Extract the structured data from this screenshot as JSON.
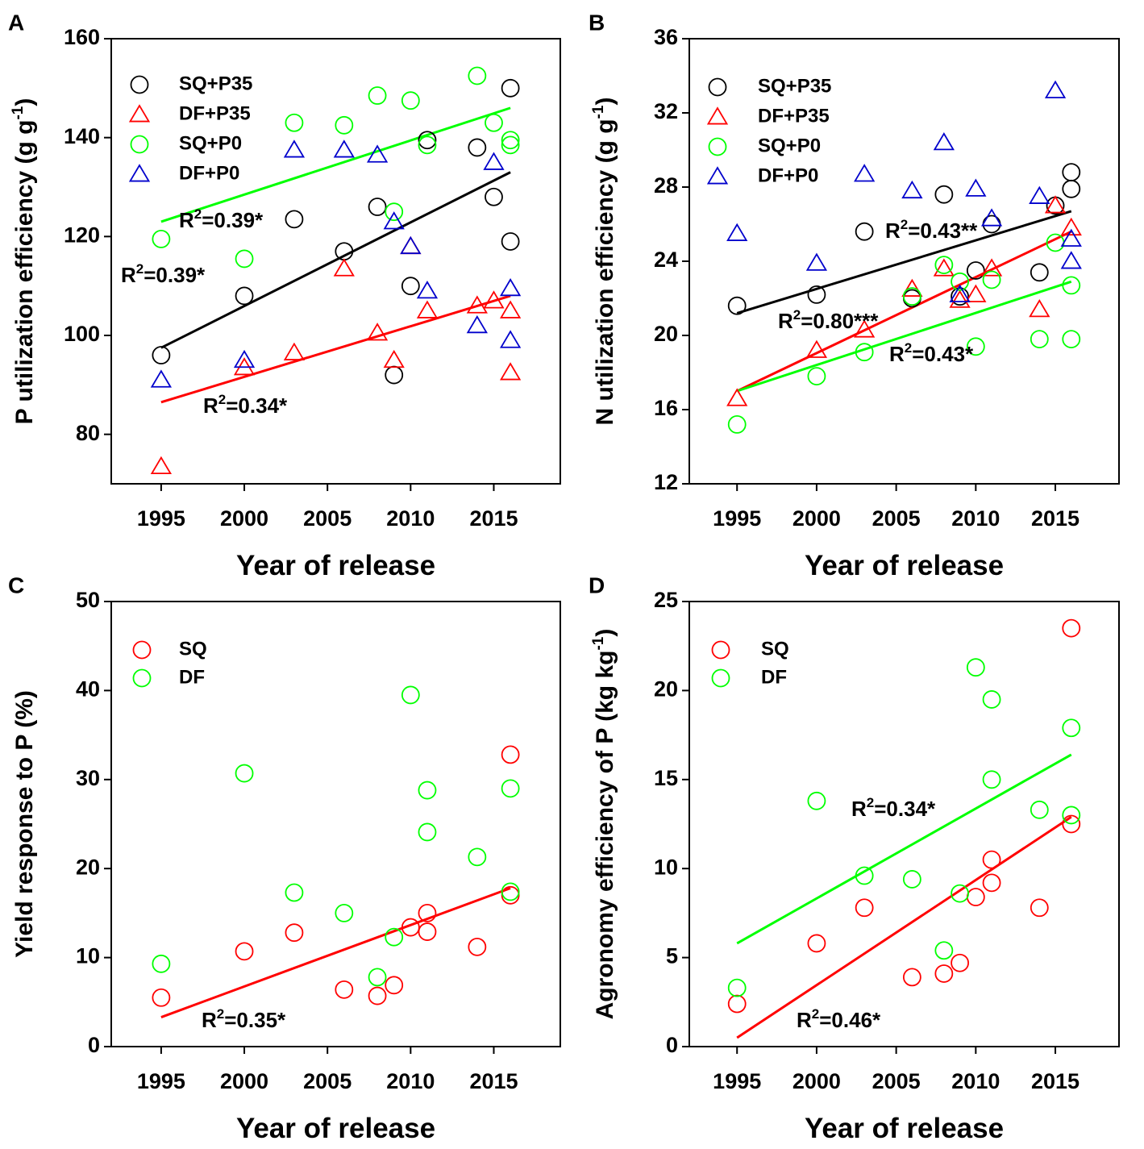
{
  "figure_title": "",
  "chart_data": [
    {
      "panel": "A",
      "type": "scatter",
      "xlabel": "Year of release",
      "ylabel": "P utilization efficiency (g g",
      "ylabel_sup": "-1",
      "ylabel_close": ")",
      "xlim": [
        1992,
        2019
      ],
      "ylim": [
        70,
        160
      ],
      "xticks": [
        1995,
        2000,
        2005,
        2010,
        2015
      ],
      "yticks": [
        80,
        100,
        120,
        140,
        160
      ],
      "legend": [
        "SQ+P35",
        "DF+P35",
        "SQ+P0",
        "DF+P0"
      ],
      "series": [
        {
          "name": "SQ+P35",
          "color": "#000000",
          "marker": "circle",
          "x": [
            1995,
            2000,
            2003,
            2006,
            2008,
            2009,
            2010,
            2011,
            2014,
            2015,
            2016,
            2016
          ],
          "y": [
            96,
            108,
            123.5,
            117,
            126,
            92,
            110,
            139.5,
            138,
            128,
            150,
            119
          ],
          "fit": {
            "x": [
              1995,
              2016
            ],
            "y": [
              97.5,
              133
            ],
            "r2": "=0.39*"
          }
        },
        {
          "name": "DF+P35",
          "color": "#ff0000",
          "marker": "triangle",
          "x": [
            1995,
            2000,
            2003,
            2006,
            2008,
            2009,
            2010,
            2011,
            2014,
            2015,
            2016,
            2016
          ],
          "y": [
            73.5,
            93.5,
            96.5,
            113.5,
            100.5,
            95,
            118,
            105,
            106,
            107,
            105,
            92.5
          ],
          "fit": {
            "x": [
              1995,
              2016
            ],
            "y": [
              86.5,
              108
            ],
            "r2": "=0.34*"
          }
        },
        {
          "name": "SQ+P0",
          "color": "#00ff00",
          "marker": "circle",
          "x": [
            1995,
            2000,
            2003,
            2006,
            2008,
            2009,
            2010,
            2011,
            2014,
            2015,
            2016,
            2016
          ],
          "y": [
            119.5,
            115.5,
            143,
            142.5,
            148.5,
            125,
            147.5,
            138.5,
            152.5,
            143,
            139.5,
            138.5
          ],
          "fit": {
            "x": [
              1995,
              2016
            ],
            "y": [
              123,
              146
            ],
            "r2": "=0.39*"
          }
        },
        {
          "name": "DF+P0",
          "color": "#0000cc",
          "marker": "triangle",
          "x": [
            1995,
            2000,
            2003,
            2006,
            2008,
            2009,
            2010,
            2011,
            2014,
            2015,
            2016,
            2016
          ],
          "y": [
            91,
            95,
            137.5,
            137.5,
            136.5,
            123,
            118,
            109,
            102,
            135,
            109.5,
            99
          ],
          "fit": null
        }
      ]
    },
    {
      "panel": "B",
      "type": "scatter",
      "xlabel": "Year of release",
      "ylabel": "N utilization efficiency (g g",
      "ylabel_sup": "-1",
      "ylabel_close": ")",
      "xlim": [
        1992,
        2019
      ],
      "ylim": [
        12,
        36
      ],
      "xticks": [
        1995,
        2000,
        2005,
        2010,
        2015
      ],
      "yticks": [
        12,
        16,
        20,
        24,
        28,
        32,
        36
      ],
      "legend": [
        "SQ+P35",
        "DF+P35",
        "SQ+P0",
        "DF+P0"
      ],
      "series": [
        {
          "name": "SQ+P35",
          "color": "#000000",
          "marker": "circle",
          "x": [
            1995,
            2000,
            2003,
            2006,
            2008,
            2009,
            2010,
            2011,
            2014,
            2015,
            2016,
            2016
          ],
          "y": [
            21.6,
            22.2,
            25.6,
            22,
            27.6,
            22.1,
            23.5,
            26,
            23.4,
            27,
            28.8,
            27.9
          ],
          "fit": {
            "x": [
              1995,
              2016
            ],
            "y": [
              21.2,
              26.7
            ],
            "r2": "=0.43**"
          }
        },
        {
          "name": "DF+P35",
          "color": "#ff0000",
          "marker": "triangle",
          "x": [
            1995,
            2000,
            2003,
            2006,
            2008,
            2009,
            2010,
            2011,
            2014,
            2015,
            2016
          ],
          "y": [
            16.6,
            19.2,
            20.3,
            22.5,
            23.6,
            21.9,
            22.2,
            23.6,
            21.4,
            27,
            25.8
          ],
          "fit": {
            "x": [
              1995,
              2016
            ],
            "y": [
              17,
              25.6
            ],
            "r2": "=0.80***"
          }
        },
        {
          "name": "SQ+P0",
          "color": "#00ff00",
          "marker": "circle",
          "x": [
            1995,
            2000,
            2003,
            2006,
            2008,
            2009,
            2010,
            2011,
            2014,
            2015,
            2016,
            2016
          ],
          "y": [
            15.2,
            17.8,
            19.1,
            22.1,
            23.8,
            22.9,
            19.4,
            23,
            19.8,
            25,
            22.7,
            19.8
          ],
          "fit": {
            "x": [
              1995,
              2016
            ],
            "y": [
              17,
              22.9
            ],
            "r2": "=0.43*"
          }
        },
        {
          "name": "DF+P0",
          "color": "#0000cc",
          "marker": "triangle",
          "x": [
            1995,
            2000,
            2003,
            2006,
            2008,
            2009,
            2010,
            2011,
            2014,
            2015,
            2016,
            2016
          ],
          "y": [
            25.5,
            23.9,
            28.7,
            27.8,
            30.4,
            22.2,
            27.9,
            26.3,
            27.5,
            33.2,
            25.2,
            24
          ],
          "fit": null
        }
      ]
    },
    {
      "panel": "C",
      "type": "scatter",
      "xlabel": "Year of release",
      "ylabel": "Yield response to P (%)",
      "ylabel_sup": "",
      "ylabel_close": "",
      "xlim": [
        1992,
        2019
      ],
      "ylim": [
        0,
        50
      ],
      "xticks": [
        1995,
        2000,
        2005,
        2010,
        2015
      ],
      "yticks": [
        0,
        10,
        20,
        30,
        40,
        50
      ],
      "legend": [
        "SQ",
        "DF"
      ],
      "series": [
        {
          "name": "SQ",
          "color": "#ff0000",
          "marker": "circle",
          "x": [
            1995,
            2000,
            2003,
            2006,
            2008,
            2009,
            2010,
            2011,
            2011,
            2014,
            2016,
            2016
          ],
          "y": [
            5.5,
            10.7,
            12.8,
            6.4,
            5.7,
            6.9,
            13.4,
            15,
            12.9,
            11.2,
            32.8,
            17
          ],
          "fit": {
            "x": [
              1995,
              2016
            ],
            "y": [
              3.3,
              17.8
            ],
            "r2": "=0.35*"
          }
        },
        {
          "name": "DF",
          "color": "#00ff00",
          "marker": "circle",
          "x": [
            1995,
            2000,
            2003,
            2006,
            2008,
            2009,
            2010,
            2011,
            2011,
            2014,
            2016,
            2016
          ],
          "y": [
            9.3,
            30.7,
            17.3,
            15,
            7.8,
            12.3,
            39.5,
            28.8,
            24.1,
            21.3,
            29,
            17.4
          ],
          "fit": null
        }
      ]
    },
    {
      "panel": "D",
      "type": "scatter",
      "xlabel": "Year of release",
      "ylabel": "Agronomy efficiency of P (kg kg",
      "ylabel_sup": "-1",
      "ylabel_close": ")",
      "xlim": [
        1992,
        2019
      ],
      "ylim": [
        0,
        25
      ],
      "xticks": [
        1995,
        2000,
        2005,
        2010,
        2015
      ],
      "yticks": [
        0,
        5,
        10,
        15,
        20,
        25
      ],
      "legend": [
        "SQ",
        "DF"
      ],
      "series": [
        {
          "name": "SQ",
          "color": "#ff0000",
          "marker": "circle",
          "x": [
            1995,
            2000,
            2003,
            2006,
            2008,
            2009,
            2010,
            2011,
            2011,
            2014,
            2016,
            2016
          ],
          "y": [
            2.4,
            5.8,
            7.8,
            3.9,
            4.1,
            4.7,
            8.4,
            9.2,
            10.5,
            7.8,
            23.5,
            12.5
          ],
          "fit": {
            "x": [
              1995,
              2016
            ],
            "y": [
              0.5,
              12.9
            ],
            "r2": "=0.46*"
          }
        },
        {
          "name": "DF",
          "color": "#00ff00",
          "marker": "circle",
          "x": [
            1995,
            2000,
            2003,
            2006,
            2008,
            2009,
            2010,
            2011,
            2011,
            2014,
            2016,
            2016
          ],
          "y": [
            3.3,
            13.8,
            9.6,
            9.4,
            5.4,
            8.6,
            21.3,
            19.5,
            15,
            13.3,
            17.9,
            13
          ],
          "fit": {
            "x": [
              1995,
              2016
            ],
            "y": [
              5.8,
              16.4
            ],
            "r2": "=0.34*"
          }
        }
      ]
    }
  ]
}
